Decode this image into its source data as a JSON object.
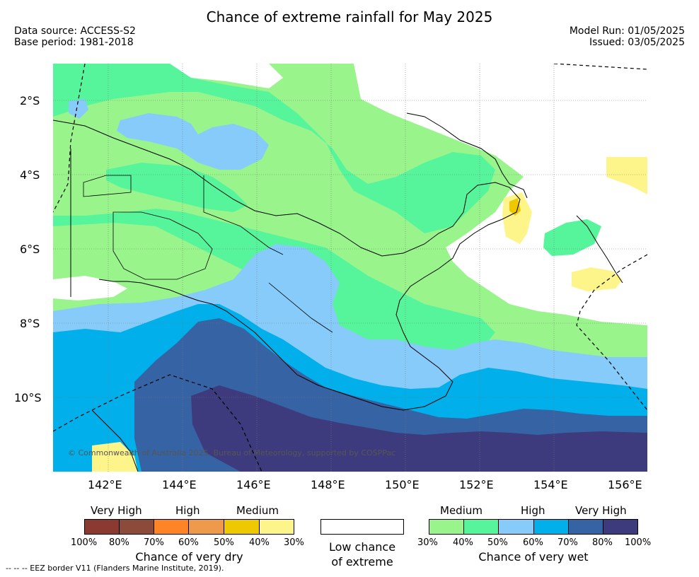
{
  "title": "Chance of extreme rainfall for May 2025",
  "data_source": "Data source: ACCESS-S2",
  "base_period": "Base period: 1981-2018",
  "model_run": "Model Run: 01/05/2025",
  "issued": "Issued: 03/05/2025",
  "copyright": "© Commonwealth of Australia 2025, Bureau of Meteorology, supported by COSPPac",
  "lat_labels": [
    "2°S",
    "4°S",
    "6°S",
    "8°S",
    "10°S"
  ],
  "lon_labels": [
    "142°E",
    "144°E",
    "146°E",
    "148°E",
    "150°E",
    "152°E",
    "154°E",
    "156°E"
  ],
  "legend": {
    "dry": {
      "categories": [
        "Very High",
        "High",
        "Medium"
      ],
      "colors": [
        "#8b3a31",
        "#8b4a3a",
        "#ff8426",
        "#ef9a4a",
        "#eec800",
        "#fdf58a"
      ],
      "ticks": [
        "100%",
        "80%",
        "70%",
        "60%",
        "50%",
        "40%",
        "30%"
      ],
      "caption": "Chance of very dry"
    },
    "low": {
      "color": "#ffffff",
      "caption_line1": "Low chance",
      "caption_line2": "of extreme"
    },
    "wet": {
      "categories": [
        "Medium",
        "High",
        "Very High"
      ],
      "colors": [
        "#99f48c",
        "#56f59b",
        "#86cbf9",
        "#01b0ea",
        "#3663a4",
        "#3d3b7d"
      ],
      "ticks": [
        "30%",
        "40%",
        "50%",
        "60%",
        "70%",
        "80%",
        "100%"
      ],
      "caption": "Chance of very wet"
    }
  },
  "eez_note": "--  --  -- EEZ border V11 (Flanders Marine Institute, 2019)."
}
